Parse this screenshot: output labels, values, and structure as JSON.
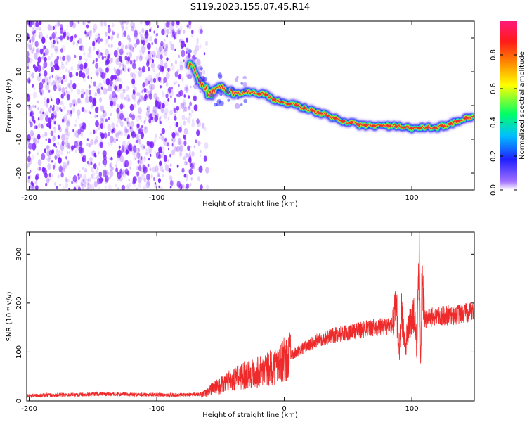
{
  "figure": {
    "title": "S119.2023.155.07.45.R14"
  },
  "colors": {
    "snr_line": "#ee2a2a",
    "ridge_core": "#e8322e",
    "ridge_mid": "#ffee22",
    "ridge_edge": "#2ad7c8",
    "ridge_outer": "#1a1aff",
    "noise": "#7b1fff",
    "colorbar_stops": [
      "#ffffff",
      "#a070ff",
      "#2020ff",
      "#00bfff",
      "#00ff66",
      "#ffff00",
      "#ff8c00",
      "#ff1a1a",
      "#ff1a7a"
    ]
  },
  "chart_data": [
    {
      "type": "heatmap",
      "name": "spectrogram",
      "title": "S119.2023.155.07.45.R14",
      "xlabel": "Height of straight line (km)",
      "ylabel": "Frequency (Hz)",
      "xlim": [
        -202,
        149
      ],
      "ylim": [
        -25,
        25
      ],
      "xticks": [
        -200,
        -100,
        0,
        100
      ],
      "yticks": [
        -20,
        -10,
        0,
        10,
        20
      ],
      "noise_region_x": [
        -202,
        -60
      ],
      "ridge": {
        "x": [
          -75,
          -70,
          -65,
          -60,
          -55,
          -50,
          -45,
          -40,
          -35,
          -30,
          -25,
          -20,
          -15,
          -10,
          -5,
          0,
          10,
          20,
          30,
          40,
          50,
          60,
          70,
          80,
          90,
          100,
          110,
          120,
          130,
          140,
          149
        ],
        "y": [
          11.5,
          10,
          7,
          4,
          3.5,
          5,
          5,
          3.5,
          3.5,
          4,
          4,
          3.5,
          3.5,
          2,
          1.2,
          0.8,
          0,
          -1.3,
          -2.5,
          -3.8,
          -5,
          -5.8,
          -6,
          -6,
          -6.3,
          -6.8,
          -6.5,
          -6.5,
          -5.5,
          -4,
          -3
        ]
      },
      "colorbar": {
        "label": "Normalized spectral amplitude",
        "range": [
          0.0,
          1.0
        ],
        "ticks": [
          0.0,
          0.2,
          0.4,
          0.6,
          0.8
        ]
      },
      "grid": false
    },
    {
      "type": "line",
      "name": "snr",
      "xlabel": "Height of straight line (km)",
      "ylabel": "SNR (10 * v/v)",
      "xlim": [
        -202,
        149
      ],
      "ylim": [
        0,
        345
      ],
      "xticks": [
        -200,
        -100,
        0,
        100
      ],
      "yticks": [
        0,
        100,
        200,
        300
      ],
      "series": [
        {
          "x": [
            -202,
            -180,
            -160,
            -140,
            -120,
            -100,
            -90,
            -80,
            -70,
            -62,
            -55,
            -50,
            -45,
            -40,
            -35,
            -30,
            -25,
            -20,
            -15,
            -10,
            -5,
            0,
            5,
            10,
            15,
            20,
            25,
            30,
            40,
            50,
            60,
            70,
            80,
            85,
            88,
            90,
            92,
            95,
            98,
            100,
            102,
            104,
            106,
            107,
            108,
            110,
            115,
            120,
            130,
            140,
            149
          ],
          "y": [
            10,
            12,
            13,
            14,
            13,
            13,
            12,
            12,
            13,
            15,
            28,
            30,
            40,
            42,
            50,
            55,
            58,
            60,
            62,
            68,
            75,
            85,
            92,
            100,
            108,
            115,
            122,
            128,
            135,
            140,
            145,
            150,
            152,
            155,
            195,
            90,
            185,
            110,
            160,
            165,
            170,
            110,
            330,
            65,
            270,
            165,
            170,
            172,
            175,
            178,
            180
          ]
        }
      ],
      "grid": false
    }
  ]
}
